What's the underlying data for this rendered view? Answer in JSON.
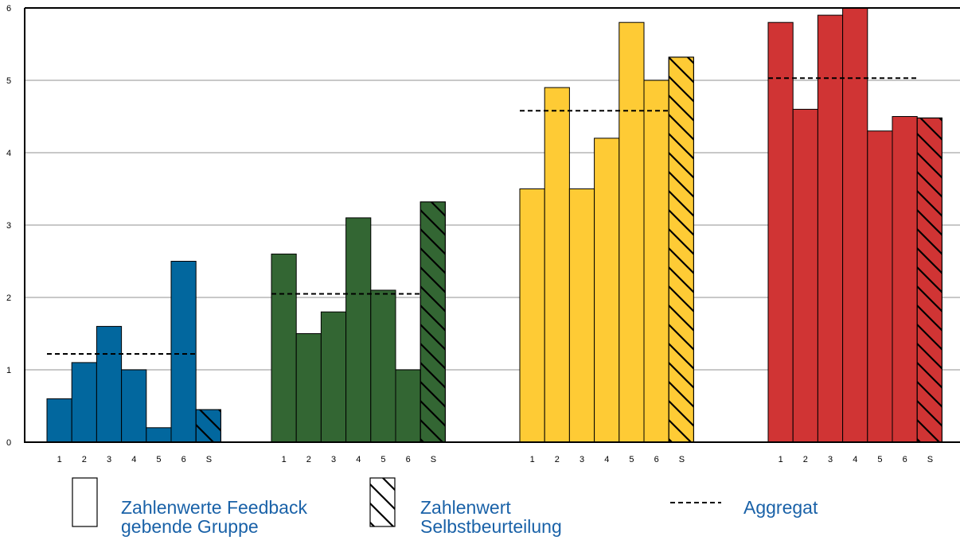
{
  "colors": {
    "blue": "#02679e",
    "green": "#336633",
    "yellow": "#fecb35",
    "red": "#d03434",
    "grid": "#c8c8c8",
    "legend_text": "#1a62a8"
  },
  "chart_data": {
    "type": "bar",
    "title": "",
    "xlabel": "",
    "ylabel": "",
    "ylim": [
      0,
      6
    ],
    "yticks": [
      "0",
      "1",
      "2",
      "3",
      "4",
      "5",
      "6"
    ],
    "grid": true,
    "categories": [
      "1",
      "2",
      "3",
      "4",
      "5",
      "6",
      "S"
    ],
    "groups": [
      {
        "color": "#02679e",
        "values": [
          0.6,
          1.1,
          1.6,
          1.0,
          0.2,
          2.5,
          0.45
        ],
        "aggregate": 1.22
      },
      {
        "color": "#336633",
        "values": [
          2.6,
          1.5,
          1.8,
          3.1,
          2.1,
          1.0,
          3.32
        ],
        "aggregate": 2.05
      },
      {
        "color": "#fecb35",
        "values": [
          3.5,
          4.9,
          3.5,
          4.2,
          5.8,
          5.0,
          5.32
        ],
        "aggregate": 4.58
      },
      {
        "color": "#d03434",
        "values": [
          5.8,
          4.6,
          5.9,
          6.0,
          4.3,
          4.5,
          4.48
        ],
        "aggregate": 5.03
      }
    ],
    "legend": {
      "position": "bottom",
      "feedback_line1": "Zahlenwerte Feedback",
      "feedback_line2": "gebende Gruppe",
      "self_line1": "Zahlenwert",
      "self_line2": "Selbstbeurteilung",
      "aggregate": "Aggregat"
    }
  }
}
